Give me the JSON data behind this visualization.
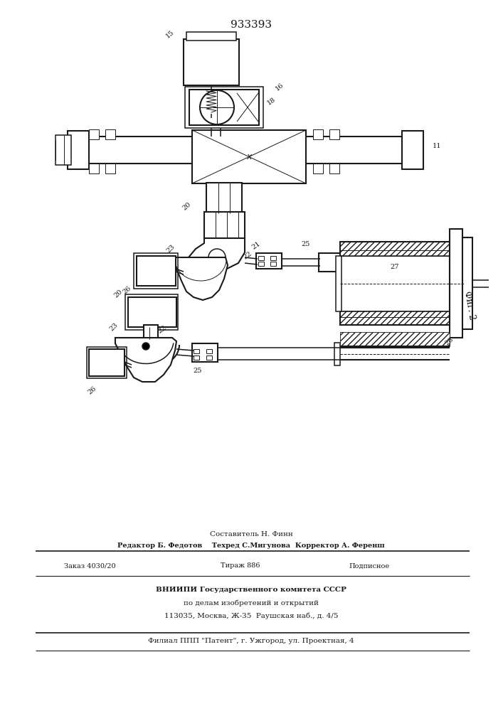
{
  "title": "933393",
  "fig_label": "Фиг. 2",
  "bg_color": "#ffffff",
  "line_color": "#1a1a1a",
  "footer_lines": [
    "Составитель Н. Финн",
    "Редактор Б. Федотов    Техред С.Мигунова  Корректор А. Ференш",
    "Заказ 4030/20",
    "Тираж 886",
    "Подписное",
    "ВНИИПИ Государственного комитета СССР",
    "по делам изобретений и открытий",
    "113035, Москва, Ж-35  Раушская наб., д. 4/5",
    "Филиал ППП \"Патент\", г. Ужгород, ул. Проектная, 4"
  ]
}
